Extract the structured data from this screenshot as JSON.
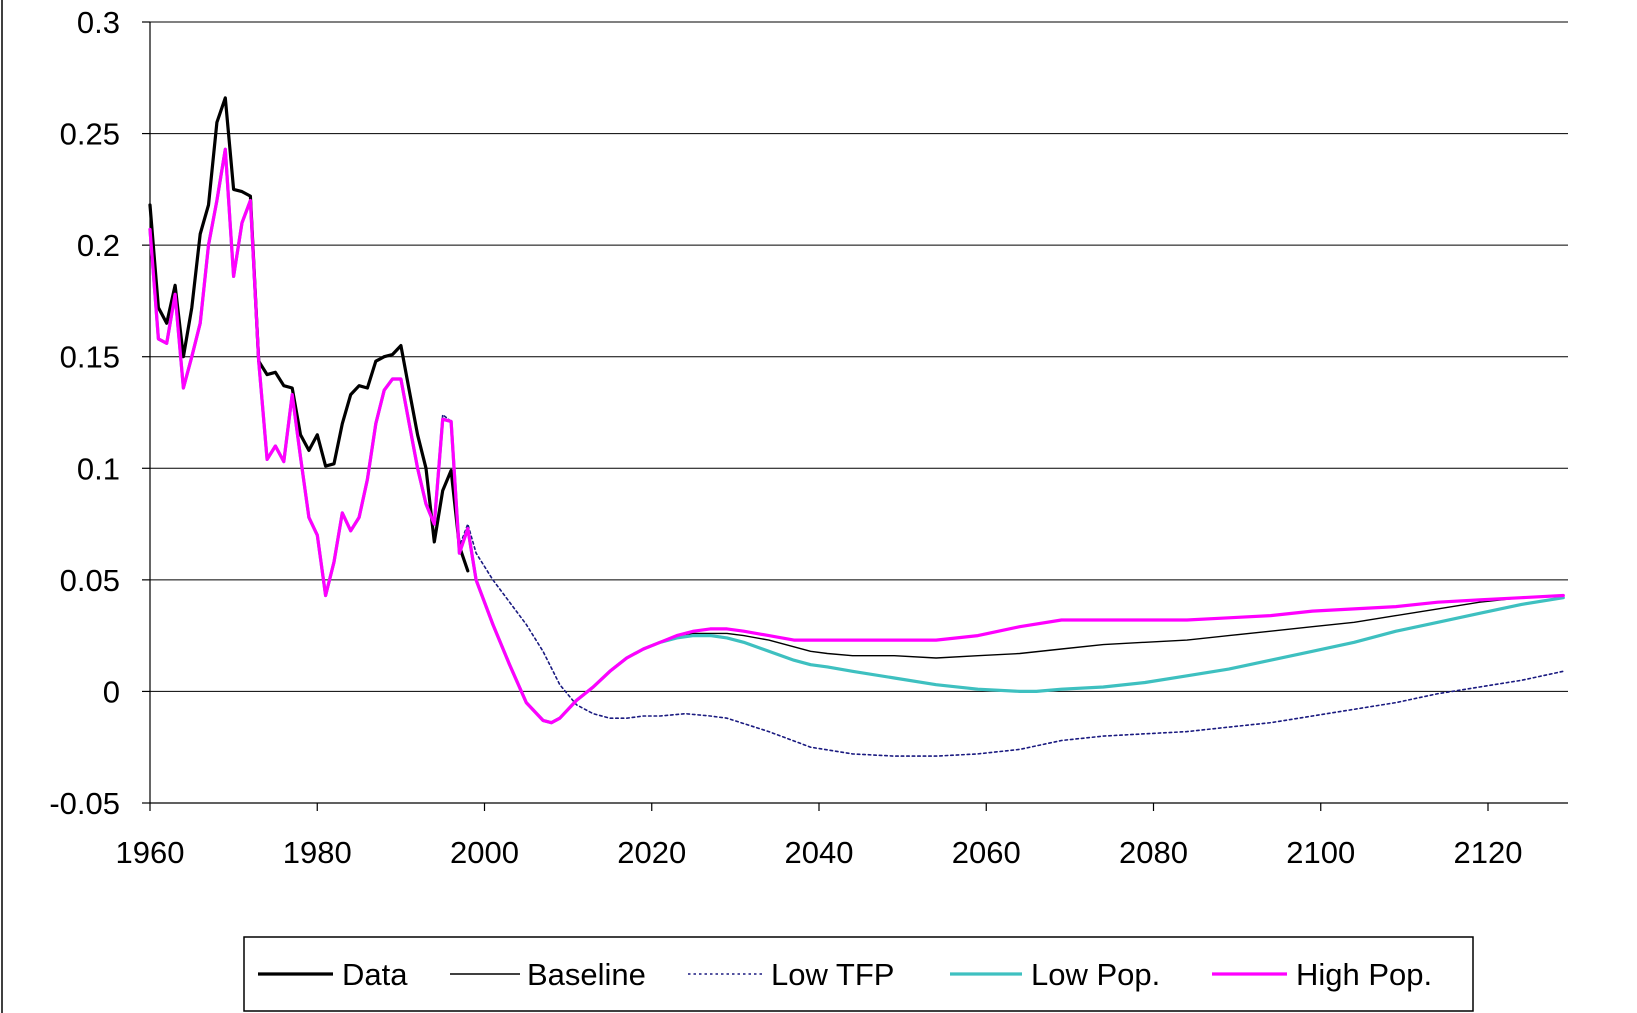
{
  "chart_data": {
    "type": "line",
    "title": "",
    "xlabel": "",
    "ylabel": "",
    "xlim": [
      1960,
      2130
    ],
    "ylim": [
      -0.05,
      0.3
    ],
    "x_ticks": [
      1960,
      1980,
      2000,
      2020,
      2040,
      2060,
      2080,
      2100,
      2120
    ],
    "x_tick_labels": [
      "1960",
      "1980",
      "2000",
      "2020",
      "2040",
      "2060",
      "2080",
      "2100",
      "2120"
    ],
    "y_ticks": [
      -0.05,
      0,
      0.05,
      0.1,
      0.15,
      0.2,
      0.25,
      0.3
    ],
    "y_tick_labels": [
      "-0.05",
      "0",
      "0.05",
      "0.1",
      "0.15",
      "0.2",
      "0.25",
      "0.3"
    ],
    "grid": "horizontal",
    "legend_position": "bottom",
    "series": [
      {
        "name": "Data",
        "color": "#000000",
        "style": "solid-thick",
        "x": [
          1961,
          1962,
          1963,
          1964,
          1965,
          1966,
          1967,
          1968,
          1969,
          1970,
          1971,
          1972,
          1973,
          1974,
          1975,
          1976,
          1977,
          1978,
          1979,
          1980,
          1981,
          1982,
          1983,
          1984,
          1985,
          1986,
          1987,
          1988,
          1989,
          1990,
          1991,
          1992,
          1993,
          1994,
          1995,
          1996,
          1997,
          1998,
          1999
        ],
        "y": [
          0.218,
          0.172,
          0.165,
          0.182,
          0.15,
          0.172,
          0.205,
          0.218,
          0.255,
          0.266,
          0.225,
          0.224,
          0.222,
          0.148,
          0.142,
          0.143,
          0.137,
          0.136,
          0.115,
          0.108,
          0.115,
          0.101,
          0.102,
          0.12,
          0.133,
          0.137,
          0.136,
          0.148,
          0.15,
          0.151,
          0.155,
          0.135,
          0.115,
          0.1,
          0.067,
          0.09,
          0.099,
          0.065,
          0.054
        ]
      },
      {
        "name": "Baseline",
        "color": "#000000",
        "style": "solid-thin",
        "x": [
          1961,
          1962,
          1963,
          1964,
          1965,
          1966,
          1967,
          1968,
          1969,
          1970,
          1971,
          1972,
          1973,
          1974,
          1975,
          1976,
          1977,
          1978,
          1979,
          1980,
          1981,
          1982,
          1983,
          1984,
          1985,
          1986,
          1987,
          1988,
          1989,
          1990,
          1991,
          1992,
          1993,
          1994,
          1995,
          1996,
          1997,
          1998,
          1999,
          2000,
          2002,
          2004,
          2006,
          2008,
          2009,
          2010,
          2012,
          2014,
          2016,
          2018,
          2020,
          2022,
          2024,
          2026,
          2028,
          2030,
          2032,
          2035,
          2038,
          2040,
          2042,
          2045,
          2050,
          2055,
          2060,
          2065,
          2070,
          2075,
          2080,
          2085,
          2090,
          2095,
          2100,
          2105,
          2110,
          2115,
          2120,
          2125,
          2130
        ],
        "y": [
          0.207,
          0.158,
          0.156,
          0.178,
          0.136,
          0.15,
          0.165,
          0.2,
          0.22,
          0.243,
          0.186,
          0.21,
          0.22,
          0.148,
          0.104,
          0.11,
          0.103,
          0.133,
          0.105,
          0.078,
          0.07,
          0.043,
          0.058,
          0.08,
          0.072,
          0.078,
          0.095,
          0.12,
          0.135,
          0.14,
          0.14,
          0.12,
          0.1,
          0.084,
          0.075,
          0.122,
          0.121,
          0.062,
          0.073,
          0.05,
          0.03,
          0.012,
          -0.005,
          -0.013,
          -0.014,
          -0.012,
          -0.004,
          0.002,
          0.009,
          0.015,
          0.019,
          0.022,
          0.025,
          0.026,
          0.026,
          0.026,
          0.025,
          0.023,
          0.02,
          0.018,
          0.017,
          0.016,
          0.016,
          0.015,
          0.016,
          0.017,
          0.019,
          0.021,
          0.022,
          0.023,
          0.025,
          0.027,
          0.029,
          0.031,
          0.034,
          0.037,
          0.04,
          0.042,
          0.043
        ]
      },
      {
        "name": "Low TFP",
        "color": "#1a1a80",
        "style": "dotted",
        "x": [
          1961,
          1962,
          1963,
          1964,
          1965,
          1966,
          1967,
          1968,
          1969,
          1970,
          1971,
          1972,
          1973,
          1974,
          1975,
          1976,
          1977,
          1978,
          1979,
          1980,
          1981,
          1982,
          1983,
          1984,
          1985,
          1986,
          1987,
          1988,
          1989,
          1990,
          1991,
          1992,
          1993,
          1994,
          1995,
          1996,
          1997,
          1998,
          1999,
          2000,
          2002,
          2004,
          2006,
          2008,
          2010,
          2012,
          2014,
          2016,
          2018,
          2020,
          2022,
          2025,
          2028,
          2030,
          2035,
          2040,
          2045,
          2050,
          2055,
          2060,
          2065,
          2070,
          2075,
          2080,
          2085,
          2090,
          2095,
          2100,
          2105,
          2110,
          2115,
          2120,
          2125,
          2130
        ],
        "y": [
          0.207,
          0.158,
          0.156,
          0.178,
          0.136,
          0.15,
          0.165,
          0.2,
          0.22,
          0.243,
          0.186,
          0.21,
          0.22,
          0.148,
          0.104,
          0.11,
          0.103,
          0.133,
          0.105,
          0.078,
          0.07,
          0.043,
          0.058,
          0.08,
          0.072,
          0.078,
          0.095,
          0.12,
          0.135,
          0.14,
          0.14,
          0.12,
          0.1,
          0.084,
          0.075,
          0.124,
          0.121,
          0.065,
          0.075,
          0.062,
          0.05,
          0.04,
          0.03,
          0.018,
          0.003,
          -0.006,
          -0.01,
          -0.012,
          -0.012,
          -0.011,
          -0.011,
          -0.01,
          -0.011,
          -0.012,
          -0.018,
          -0.025,
          -0.028,
          -0.029,
          -0.029,
          -0.028,
          -0.026,
          -0.022,
          -0.02,
          -0.019,
          -0.018,
          -0.016,
          -0.014,
          -0.011,
          -0.008,
          -0.005,
          -0.001,
          0.002,
          0.005,
          0.009
        ]
      },
      {
        "name": "Low Pop.",
        "color": "#3ec0c0",
        "style": "solid-thick",
        "x": [
          1961,
          1962,
          1963,
          1964,
          1965,
          1966,
          1967,
          1968,
          1969,
          1970,
          1971,
          1972,
          1973,
          1974,
          1975,
          1976,
          1977,
          1978,
          1979,
          1980,
          1981,
          1982,
          1983,
          1984,
          1985,
          1986,
          1987,
          1988,
          1989,
          1990,
          1991,
          1992,
          1993,
          1994,
          1995,
          1996,
          1997,
          1998,
          1999,
          2000,
          2002,
          2004,
          2006,
          2008,
          2009,
          2010,
          2012,
          2014,
          2016,
          2018,
          2020,
          2022,
          2024,
          2026,
          2028,
          2030,
          2032,
          2035,
          2038,
          2040,
          2042,
          2045,
          2050,
          2055,
          2060,
          2065,
          2067,
          2070,
          2075,
          2080,
          2085,
          2090,
          2095,
          2100,
          2105,
          2110,
          2115,
          2120,
          2125,
          2130
        ],
        "y": [
          0.207,
          0.158,
          0.156,
          0.178,
          0.136,
          0.15,
          0.165,
          0.2,
          0.22,
          0.243,
          0.186,
          0.21,
          0.22,
          0.148,
          0.104,
          0.11,
          0.103,
          0.133,
          0.105,
          0.078,
          0.07,
          0.043,
          0.058,
          0.08,
          0.072,
          0.078,
          0.095,
          0.12,
          0.135,
          0.14,
          0.14,
          0.12,
          0.1,
          0.084,
          0.075,
          0.122,
          0.121,
          0.062,
          0.073,
          0.05,
          0.03,
          0.012,
          -0.005,
          -0.013,
          -0.014,
          -0.012,
          -0.004,
          0.002,
          0.009,
          0.015,
          0.019,
          0.022,
          0.024,
          0.025,
          0.025,
          0.024,
          0.022,
          0.018,
          0.014,
          0.012,
          0.011,
          0.009,
          0.006,
          0.003,
          0.001,
          0.0,
          0.0,
          0.001,
          0.002,
          0.004,
          0.007,
          0.01,
          0.014,
          0.018,
          0.022,
          0.027,
          0.031,
          0.035,
          0.039,
          0.042
        ]
      },
      {
        "name": "High Pop.",
        "color": "#ff00ff",
        "style": "solid-thick",
        "x": [
          1961,
          1962,
          1963,
          1964,
          1965,
          1966,
          1967,
          1968,
          1969,
          1970,
          1971,
          1972,
          1973,
          1974,
          1975,
          1976,
          1977,
          1978,
          1979,
          1980,
          1981,
          1982,
          1983,
          1984,
          1985,
          1986,
          1987,
          1988,
          1989,
          1990,
          1991,
          1992,
          1993,
          1994,
          1995,
          1996,
          1997,
          1998,
          1999,
          2000,
          2002,
          2004,
          2006,
          2008,
          2009,
          2010,
          2012,
          2014,
          2016,
          2018,
          2020,
          2022,
          2024,
          2026,
          2028,
          2030,
          2032,
          2035,
          2038,
          2040,
          2042,
          2045,
          2050,
          2055,
          2060,
          2065,
          2070,
          2075,
          2080,
          2085,
          2090,
          2095,
          2100,
          2105,
          2110,
          2115,
          2120,
          2125,
          2130
        ],
        "y": [
          0.207,
          0.158,
          0.156,
          0.178,
          0.136,
          0.15,
          0.165,
          0.2,
          0.22,
          0.243,
          0.186,
          0.21,
          0.22,
          0.148,
          0.104,
          0.11,
          0.103,
          0.133,
          0.105,
          0.078,
          0.07,
          0.043,
          0.058,
          0.08,
          0.072,
          0.078,
          0.095,
          0.12,
          0.135,
          0.14,
          0.14,
          0.12,
          0.1,
          0.084,
          0.075,
          0.122,
          0.121,
          0.062,
          0.073,
          0.05,
          0.03,
          0.012,
          -0.005,
          -0.013,
          -0.014,
          -0.012,
          -0.004,
          0.002,
          0.009,
          0.015,
          0.019,
          0.022,
          0.025,
          0.027,
          0.028,
          0.028,
          0.027,
          0.025,
          0.023,
          0.023,
          0.023,
          0.023,
          0.023,
          0.023,
          0.025,
          0.029,
          0.032,
          0.032,
          0.032,
          0.032,
          0.033,
          0.034,
          0.036,
          0.037,
          0.038,
          0.04,
          0.041,
          0.042,
          0.043
        ]
      }
    ]
  }
}
